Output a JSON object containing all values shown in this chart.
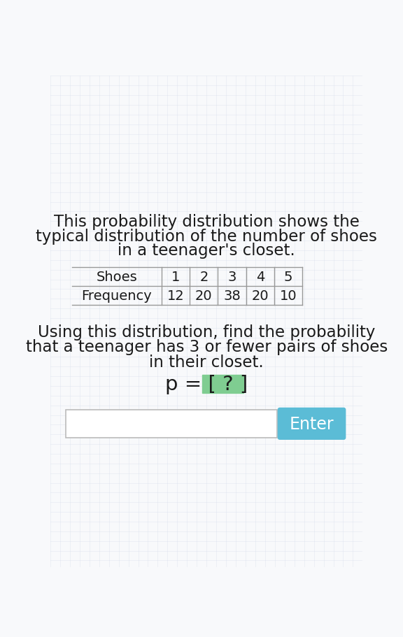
{
  "bg_color": "#f0f2f5",
  "grid_color": "#d0d8e8",
  "title_line1": "This probability distribution shows the",
  "title_line2": "typical distribution of the number of shoes",
  "title_line3": "in a teenager's closet.",
  "table_row_label": "Frequency",
  "table_row_values": [
    "12",
    "20",
    "38",
    "20",
    "10"
  ],
  "shoes_values": [
    "1",
    "2",
    "3",
    "4",
    "5"
  ],
  "question_line1": "Using this distribution, find the probability",
  "question_line2": "that a teenager has 3 or fewer pairs of shoes",
  "question_line3": "in their closet.",
  "enter_button_color": "#5bbcd6",
  "enter_button_text": "Enter",
  "input_box_color": "#ffffff",
  "text_color": "#1a1a1a",
  "table_line_color": "#999999",
  "highlight_color": "#7fcd91",
  "title_fontsize": 16.5,
  "question_fontsize": 16.5,
  "formula_fontsize": 21,
  "table_fontsize": 14
}
